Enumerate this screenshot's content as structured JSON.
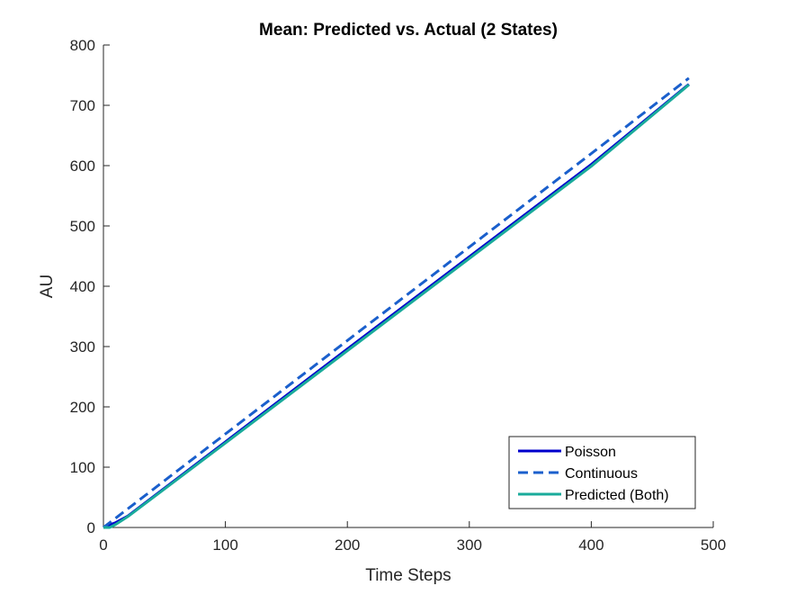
{
  "chart_data": {
    "type": "line",
    "title": "Mean: Predicted vs. Actual (2 States)",
    "xlabel": "Time Steps",
    "ylabel": "AU",
    "xlim": [
      0,
      500
    ],
    "ylim": [
      0,
      800
    ],
    "xticks": [
      0,
      100,
      200,
      300,
      400,
      500
    ],
    "yticks": [
      0,
      100,
      200,
      300,
      400,
      500,
      600,
      700,
      800
    ],
    "grid": false,
    "legend_position": "bottom-right",
    "series": [
      {
        "name": "Poisson",
        "color": "#0000cc",
        "style": "solid",
        "x": [
          0,
          5,
          10,
          20,
          100,
          200,
          300,
          400,
          480
        ],
        "y": [
          0,
          4,
          8,
          19,
          142,
          296,
          449,
          602,
          735
        ]
      },
      {
        "name": "Continuous",
        "color": "#1a5fcc",
        "style": "dashed",
        "x": [
          0,
          100,
          200,
          300,
          400,
          480
        ],
        "y": [
          0,
          155,
          310,
          465,
          620,
          745
        ]
      },
      {
        "name": "Predicted (Both)",
        "color": "#1aab9b",
        "style": "solid",
        "x": [
          0,
          5,
          10,
          20,
          100,
          200,
          300,
          400,
          480
        ],
        "y": [
          0,
          0,
          5,
          18,
          140,
          293,
          446,
          599,
          734
        ]
      }
    ]
  }
}
